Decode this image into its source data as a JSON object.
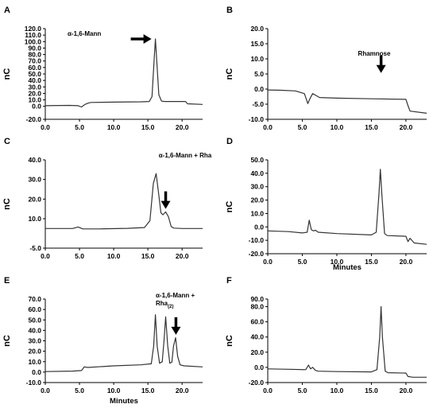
{
  "chart_data": [
    {
      "type": "line",
      "panel": "A",
      "ylabel": "nC",
      "xlabel": "",
      "xlim": [
        0,
        23
      ],
      "ylim": [
        -20,
        120
      ],
      "xticks": [
        "0.0",
        "5.0",
        "10.0",
        "15.0",
        "20.0"
      ],
      "yticks": [
        "-20.0",
        "0.0",
        "10.0",
        "20.0",
        "30.0",
        "40.0",
        "50.0",
        "60.0",
        "70.0",
        "80.0",
        "90.0",
        "100.0",
        "110.0",
        "120.0"
      ],
      "yticks_values": [
        -20,
        0,
        10,
        20,
        30,
        40,
        50,
        60,
        70,
        80,
        90,
        100,
        110,
        120
      ],
      "annotations": [
        {
          "text": "α-1,6-Mann",
          "sub": "",
          "arrow": "right",
          "x": 16.1,
          "y": 104
        }
      ],
      "series": [
        {
          "x": [
            0,
            3.5,
            4.8,
            5.3,
            5.8,
            6.3,
            6.7,
            10,
            14,
            15.2,
            15.6,
            15.9,
            16.1,
            16.3,
            16.6,
            17.0,
            17.5,
            20.5,
            20.8,
            23
          ],
          "y": [
            1,
            1.5,
            1,
            -1,
            3,
            5,
            6,
            6.5,
            7,
            7.5,
            15,
            70,
            104,
            70,
            18,
            8,
            7.5,
            7.5,
            4,
            3
          ]
        }
      ]
    },
    {
      "type": "line",
      "panel": "B",
      "ylabel": "nC",
      "xlabel": "",
      "xlim": [
        0,
        23
      ],
      "ylim": [
        -10,
        20
      ],
      "xticks": [
        "0.0",
        "5.0",
        "10.0",
        "15.0",
        "20.0"
      ],
      "yticks": [
        "-10.0",
        "-5.0",
        "0.0",
        "5.0",
        "10.0",
        "15.0",
        "20.0"
      ],
      "yticks_values": [
        -10,
        -5,
        0,
        5,
        10,
        15,
        20
      ],
      "annotations": [
        {
          "text": "Rhamnose",
          "sub": "",
          "arrow": "down",
          "x": 16.4,
          "y": 4
        }
      ],
      "series": [
        {
          "x": [
            0,
            2,
            4,
            5.3,
            5.8,
            6.1,
            6.5,
            6.9,
            7.5,
            10,
            15,
            20,
            20.3,
            20.6,
            23
          ],
          "y": [
            -0.3,
            -0.4,
            -0.6,
            -1.5,
            -4.8,
            -3.2,
            -1.5,
            -2,
            -2.8,
            -3,
            -3.2,
            -3.4,
            -5.5,
            -7.3,
            -8
          ]
        }
      ]
    },
    {
      "type": "line",
      "panel": "C",
      "ylabel": "nC",
      "xlabel": "",
      "xlim": [
        0,
        23
      ],
      "ylim": [
        -5,
        40
      ],
      "xticks": [
        "0.0",
        "5.0",
        "10.0",
        "15.0",
        "20.0"
      ],
      "yticks": [
        "-5.0",
        "10.0",
        "20.0",
        "30.0",
        "40.0"
      ],
      "yticks_values": [
        -5,
        10,
        20,
        30,
        40
      ],
      "annotations": [
        {
          "text": "α-1,6-Mann + Rha",
          "sub": "",
          "arrow": "down",
          "x": 17.6,
          "y": 13
        }
      ],
      "series": [
        {
          "x": [
            0,
            4,
            4.8,
            5.5,
            8,
            12,
            14.5,
            15.3,
            15.8,
            16.2,
            16.6,
            16.9,
            17.2,
            17.6,
            18.0,
            18.4,
            18.8,
            20,
            23
          ],
          "y": [
            5,
            5,
            5.8,
            4.8,
            4.8,
            5.1,
            5.5,
            9,
            28,
            33,
            22,
            13,
            12,
            13.5,
            11,
            6,
            5.2,
            5,
            5
          ]
        }
      ]
    },
    {
      "type": "line",
      "panel": "D",
      "ylabel": "nC",
      "xlabel": "Minutes",
      "xlim": [
        0,
        23
      ],
      "ylim": [
        -20,
        50
      ],
      "xticks": [
        "0.0",
        "5.0",
        "10.0",
        "15.0",
        "20.0"
      ],
      "yticks": [
        "-20.0",
        "-10.0",
        "0.0",
        "10.0",
        "20.0",
        "30.0",
        "40.0",
        "50.0"
      ],
      "yticks_values": [
        -20,
        -10,
        0,
        10,
        20,
        30,
        40,
        50
      ],
      "annotations": [],
      "series": [
        {
          "x": [
            0,
            3,
            5,
            5.7,
            6.0,
            6.3,
            6.6,
            6.9,
            7.3,
            10,
            15,
            15.7,
            16.1,
            16.3,
            16.5,
            16.9,
            17.3,
            20,
            20.3,
            20.6,
            21.2,
            23
          ],
          "y": [
            -3,
            -3.5,
            -4.5,
            -4,
            5,
            -2,
            -3,
            -2.5,
            -4,
            -5,
            -6,
            -4,
            25,
            43,
            25,
            -5,
            -6.5,
            -7,
            -11,
            -8.5,
            -12,
            -13
          ]
        }
      ]
    },
    {
      "type": "line",
      "panel": "E",
      "ylabel": "nC",
      "xlabel": "Minutes",
      "xlim": [
        0,
        23
      ],
      "ylim": [
        -10,
        70
      ],
      "xticks": [
        "0.0",
        "5.0",
        "10.0",
        "15.0",
        "20.0"
      ],
      "yticks": [
        "-10.0",
        "0.0",
        "10.0",
        "20.0",
        "30.0",
        "40.0",
        "50.0",
        "60.0",
        "70.0"
      ],
      "yticks_values": [
        -10,
        0,
        10,
        20,
        30,
        40,
        50,
        60,
        70
      ],
      "annotations": [
        {
          "text": "α-1,6-Mann +",
          "sub": "Rha(2)",
          "arrow": "down",
          "x": 19.1,
          "y": 32
        }
      ],
      "series": [
        {
          "x": [
            0,
            4,
            5.3,
            5.7,
            6.2,
            10,
            14,
            15.5,
            15.85,
            16.1,
            16.35,
            16.7,
            17.1,
            17.35,
            17.6,
            17.9,
            18.2,
            18.5,
            18.75,
            19.05,
            19.35,
            19.7,
            20.3,
            23
          ],
          "y": [
            0.5,
            1,
            1.5,
            5,
            4.5,
            6,
            7,
            8,
            25,
            55,
            25,
            8.5,
            10,
            30,
            53,
            25,
            8.5,
            9.5,
            25,
            33,
            15,
            7,
            6,
            5
          ]
        }
      ]
    },
    {
      "type": "line",
      "panel": "F",
      "ylabel": "nC",
      "xlabel": "",
      "xlim": [
        0,
        23
      ],
      "ylim": [
        -20,
        90
      ],
      "xticks": [
        "0.0",
        "5.0",
        "10.0",
        "15.0",
        "20.0"
      ],
      "yticks": [
        "-20.0",
        "0.0",
        "20.0",
        "40.0",
        "60.0",
        "80.0",
        "90.0"
      ],
      "yticks_values": [
        -20,
        0,
        20,
        40,
        60,
        80,
        90
      ],
      "annotations": [],
      "series": [
        {
          "x": [
            0,
            3,
            5.5,
            5.9,
            6.2,
            6.5,
            6.9,
            7.3,
            10,
            15,
            15.8,
            16.2,
            16.4,
            16.6,
            17.0,
            17.4,
            20,
            20.3,
            21,
            23
          ],
          "y": [
            -2,
            -2.5,
            -3,
            3,
            -2,
            0,
            -4,
            -5,
            -5.5,
            -6,
            -3,
            40,
            80,
            40,
            -5,
            -7,
            -7.5,
            -12,
            -13,
            -13
          ]
        }
      ]
    }
  ]
}
